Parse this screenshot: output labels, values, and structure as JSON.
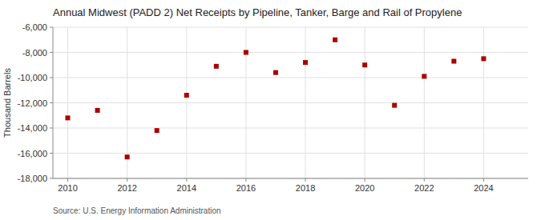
{
  "chart_data": {
    "type": "scatter",
    "title": "Annual Midwest (PADD 2) Net Receipts by Pipeline, Tanker, Barge and Rail of Propylene",
    "ylabel": "Thousand Barrels",
    "source": "Source: U.S. Energy Information Administration",
    "color": "#aa0000",
    "marker": "square",
    "x": [
      2010,
      2011,
      2012,
      2013,
      2014,
      2015,
      2016,
      2017,
      2018,
      2019,
      2020,
      2021,
      2022,
      2023,
      2024
    ],
    "values": [
      -13200,
      -12600,
      -16300,
      -14200,
      -11400,
      -9100,
      -8000,
      -9600,
      -8800,
      -7000,
      -9000,
      -12200,
      -9900,
      -8700,
      -8500
    ],
    "xlim": [
      2009.5,
      2025.5
    ],
    "xticks": [
      2010,
      2012,
      2014,
      2016,
      2018,
      2020,
      2022,
      2024
    ],
    "ylim": [
      -18000,
      -6000
    ],
    "yticks": [
      {
        "value": -18000,
        "label": "-18,000"
      },
      {
        "value": -16000,
        "label": "-16,000"
      },
      {
        "value": -14000,
        "label": "-14,000"
      },
      {
        "value": -12000,
        "label": "-12,000"
      },
      {
        "value": -10000,
        "label": "-10,000"
      },
      {
        "value": -8000,
        "label": "-8,000"
      },
      {
        "value": -6000,
        "label": "-6,000"
      }
    ],
    "grid": true
  }
}
